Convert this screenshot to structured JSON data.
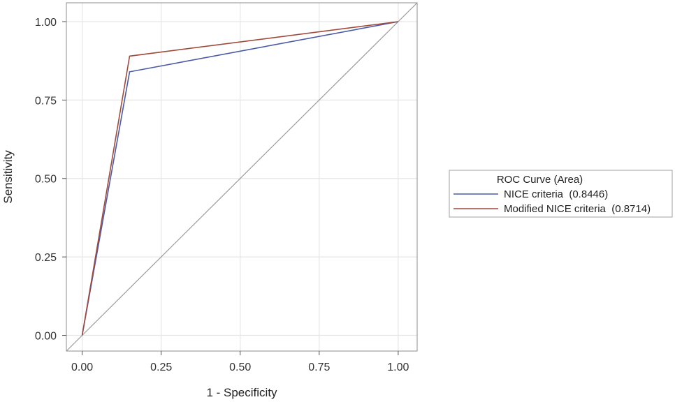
{
  "chart_data": {
    "type": "line",
    "xlabel": "1 - Specificity",
    "ylabel": "Sensitivity",
    "xlim": [
      -0.05,
      1.06
    ],
    "ylim": [
      -0.05,
      1.06
    ],
    "x_ticks": [
      "0.00",
      "0.25",
      "0.50",
      "0.75",
      "1.00"
    ],
    "y_ticks": [
      "0.00",
      "0.25",
      "0.50",
      "0.75",
      "1.00"
    ],
    "tick_values": [
      0,
      0.25,
      0.5,
      0.75,
      1.0
    ],
    "grid": true,
    "reference_line": [
      [
        -0.05,
        -0.05
      ],
      [
        1.06,
        1.06
      ]
    ],
    "legend": {
      "title": "ROC Curve (Area)",
      "placement": "right"
    },
    "series": [
      {
        "name": "NICE criteria  (0.8446)",
        "color": "#4a5ba6",
        "x": [
          0,
          0.15,
          1.0
        ],
        "y": [
          0,
          0.84,
          1.0
        ]
      },
      {
        "name": "Modified NICE criteria  (0.8714)",
        "color": "#a14a3c",
        "x": [
          0,
          0.15,
          1.0
        ],
        "y": [
          0,
          0.89,
          1.0
        ]
      }
    ]
  }
}
